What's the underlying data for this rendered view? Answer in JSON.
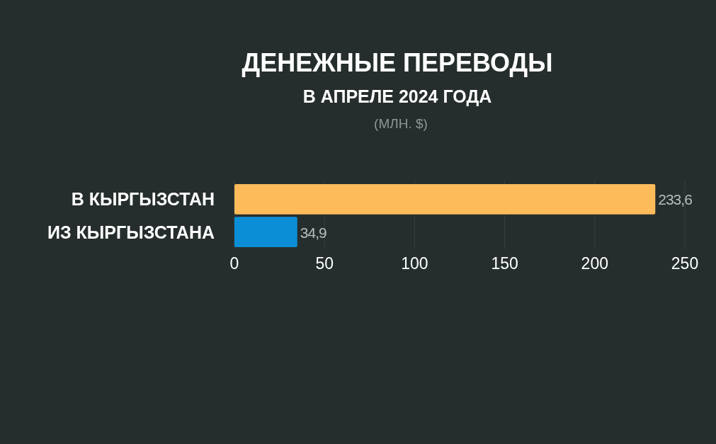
{
  "chart_data": {
    "type": "bar",
    "orientation": "horizontal",
    "title": "ДЕНЕЖНЫЕ ПЕРЕВОДЫ",
    "subtitle": "В АПРЕЛЕ 2024 ГОДА",
    "annotations": [
      "(МЛН. $)"
    ],
    "categories": [
      "В КЫРГЫЗСТАН",
      "ИЗ КЫРГЫЗСТАНА"
    ],
    "values": [
      233.6,
      34.9
    ],
    "colors": [
      "#fdbb5a",
      "#0b8ed6"
    ],
    "value_labels": [
      "233,6",
      "34,9"
    ],
    "xlim": [
      0,
      250
    ],
    "xticks": [
      0,
      50,
      100,
      150,
      200,
      250
    ],
    "grid": "x"
  }
}
